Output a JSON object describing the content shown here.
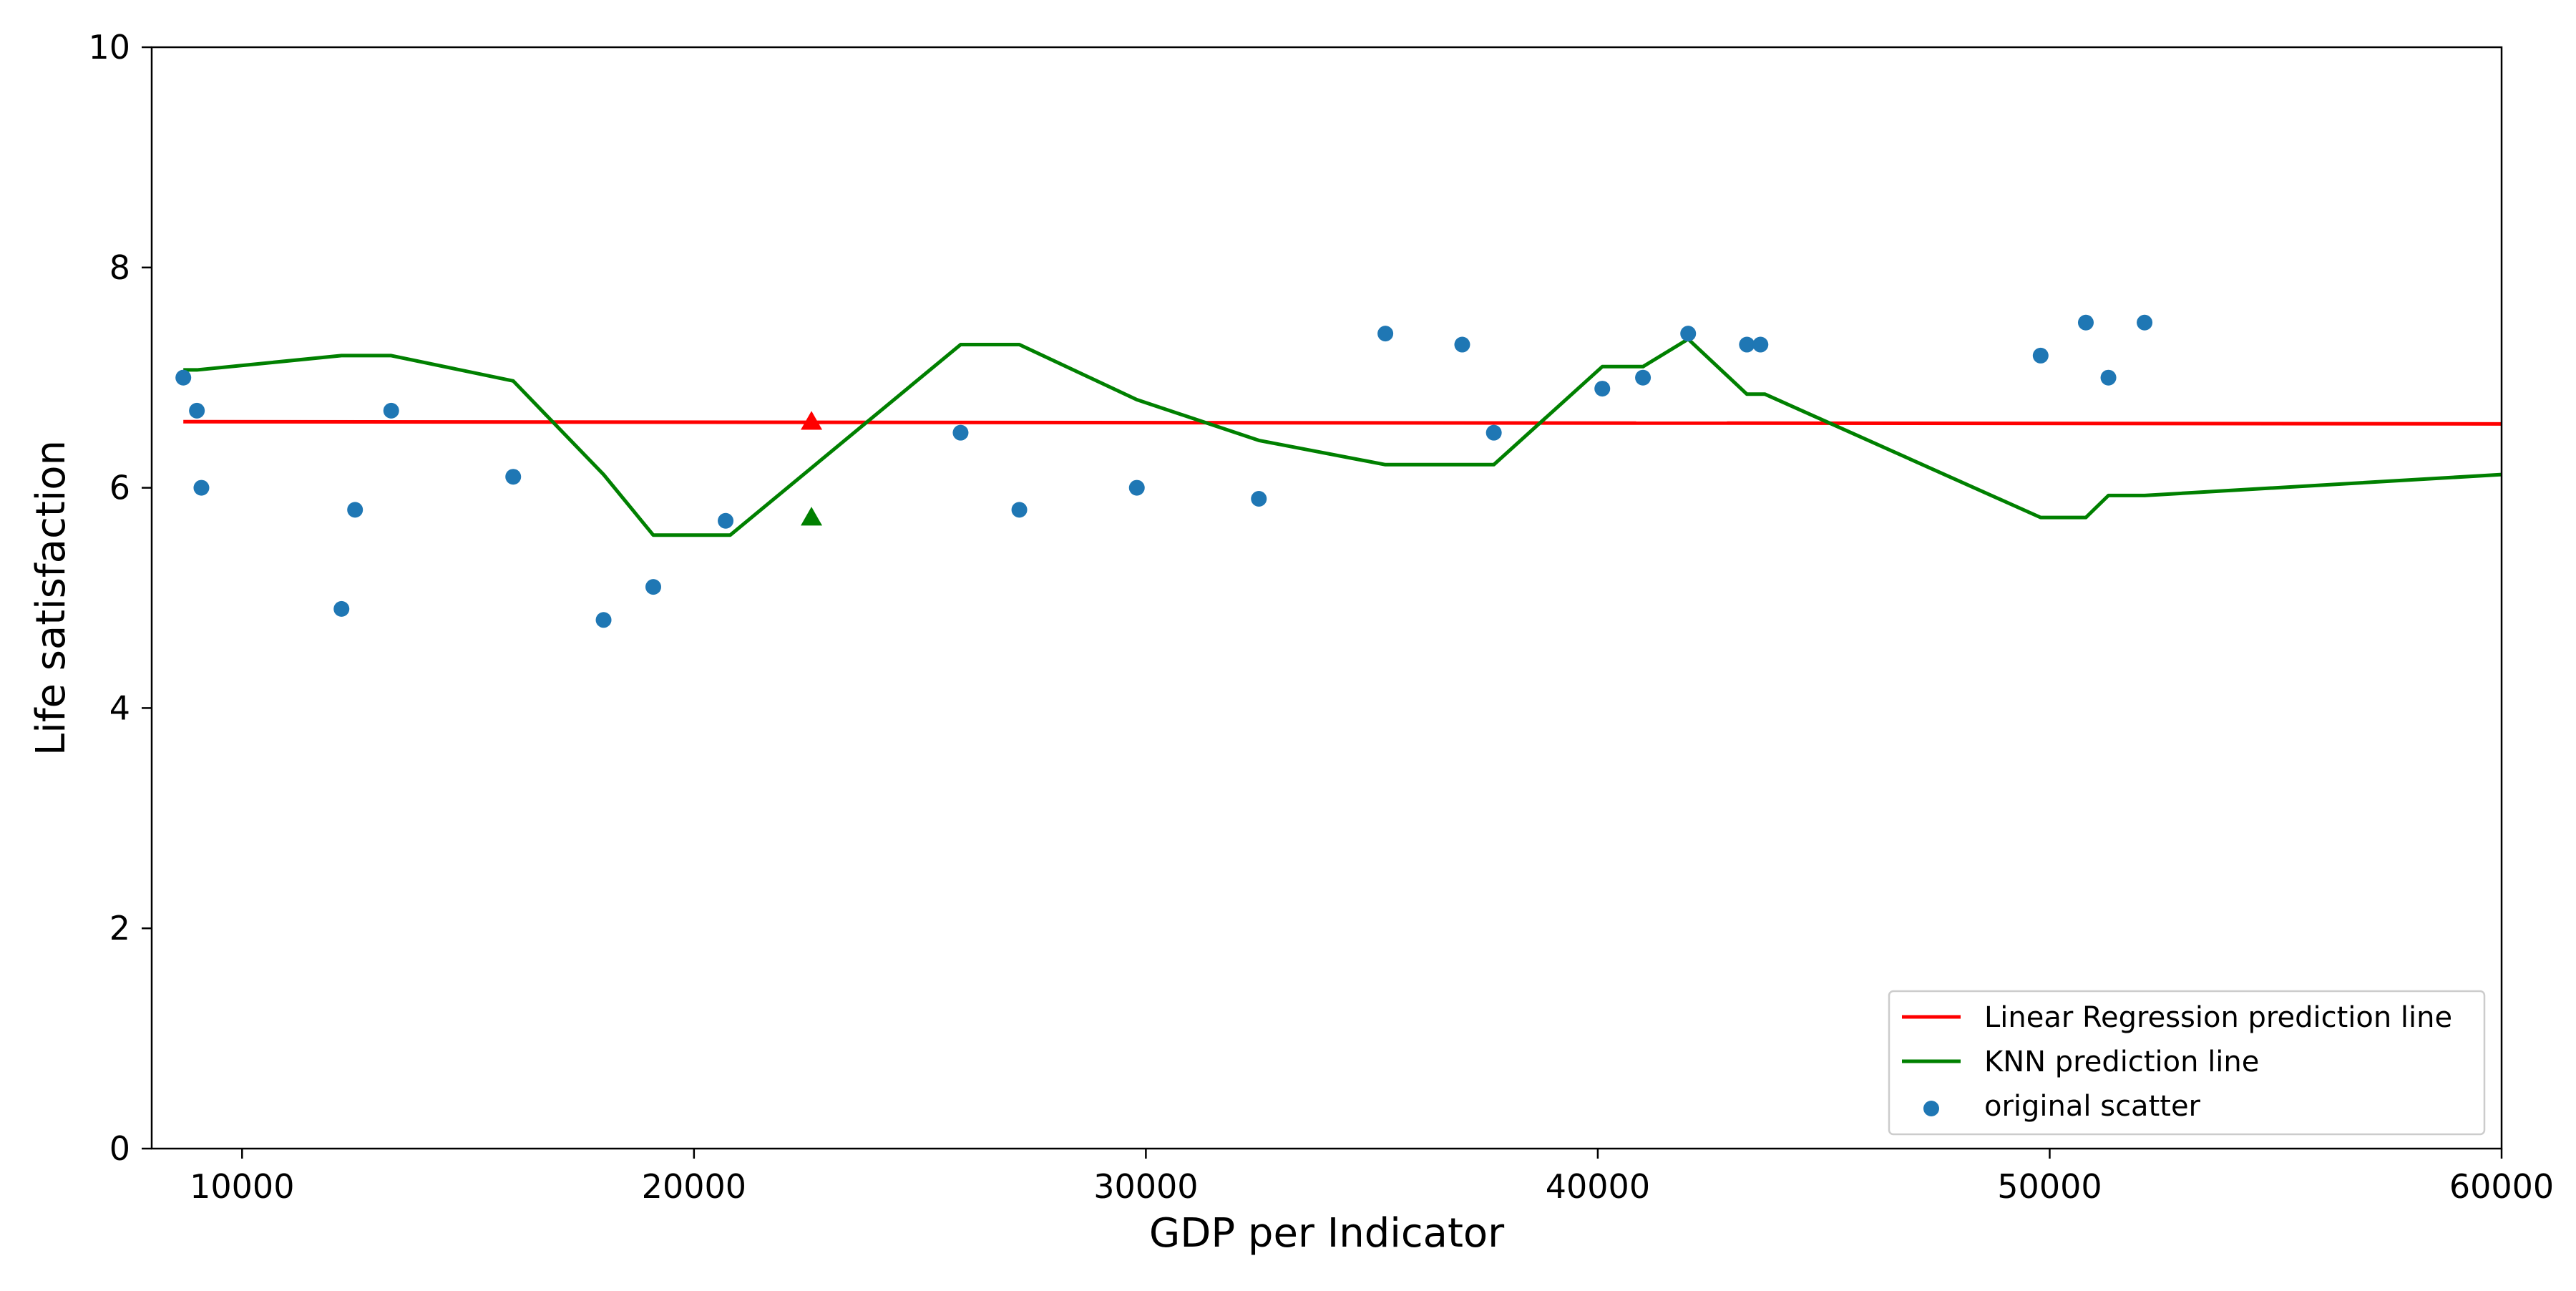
{
  "chart_data": {
    "type": "scatter",
    "title": "",
    "xlabel": "GDP per Indicator",
    "ylabel": "Life satisfaction",
    "xlim": [
      8000,
      60000
    ],
    "ylim": [
      0,
      10
    ],
    "x_ticks": [
      10000,
      20000,
      30000,
      40000,
      50000,
      60000
    ],
    "y_ticks": [
      0,
      2,
      4,
      6,
      8,
      10
    ],
    "grid": false,
    "legend_position": "bottom-right",
    "series": [
      {
        "name": "Linear Regression prediction line",
        "kind": "line",
        "color": "#ff0000",
        "x": [
          8700,
          60000
        ],
        "y": [
          6.6,
          6.58
        ]
      },
      {
        "name": "KNN prediction line",
        "kind": "line",
        "color": "#008000",
        "x": [
          8700,
          9000,
          12200,
          13300,
          16000,
          18000,
          19100,
          20800,
          25900,
          27200,
          29800,
          32500,
          35300,
          37700,
          40100,
          41000,
          42000,
          43300,
          43700,
          49800,
          50800,
          51300,
          52100,
          60000
        ],
        "y": [
          7.07,
          7.07,
          7.2,
          7.2,
          6.97,
          6.12,
          5.57,
          5.57,
          7.3,
          7.3,
          6.8,
          6.43,
          6.21,
          6.21,
          7.1,
          7.1,
          7.35,
          6.85,
          6.85,
          5.73,
          5.73,
          5.93,
          5.93,
          6.12
        ]
      },
      {
        "name": "original scatter",
        "kind": "scatter",
        "color": "#1f77b4",
        "x": [
          8700,
          9000,
          9100,
          12200,
          12500,
          13300,
          16000,
          18000,
          19100,
          20700,
          25900,
          27200,
          29800,
          32500,
          35300,
          37000,
          37700,
          40100,
          41000,
          42000,
          43300,
          43600,
          49800,
          50800,
          51300,
          52100
        ],
        "y": [
          7.0,
          6.7,
          6.0,
          4.9,
          5.8,
          6.7,
          6.1,
          4.8,
          5.1,
          5.7,
          6.5,
          5.8,
          6.0,
          5.9,
          7.4,
          7.3,
          6.5,
          6.9,
          7.0,
          7.4,
          7.3,
          7.3,
          7.2,
          7.5,
          7.0,
          7.5
        ]
      }
    ],
    "markers": [
      {
        "kind": "linear-regression-prediction",
        "color": "#ff0000",
        "x": 22600,
        "y": 6.6
      },
      {
        "kind": "knn-prediction",
        "color": "#008000",
        "x": 22600,
        "y": 5.73
      }
    ]
  }
}
